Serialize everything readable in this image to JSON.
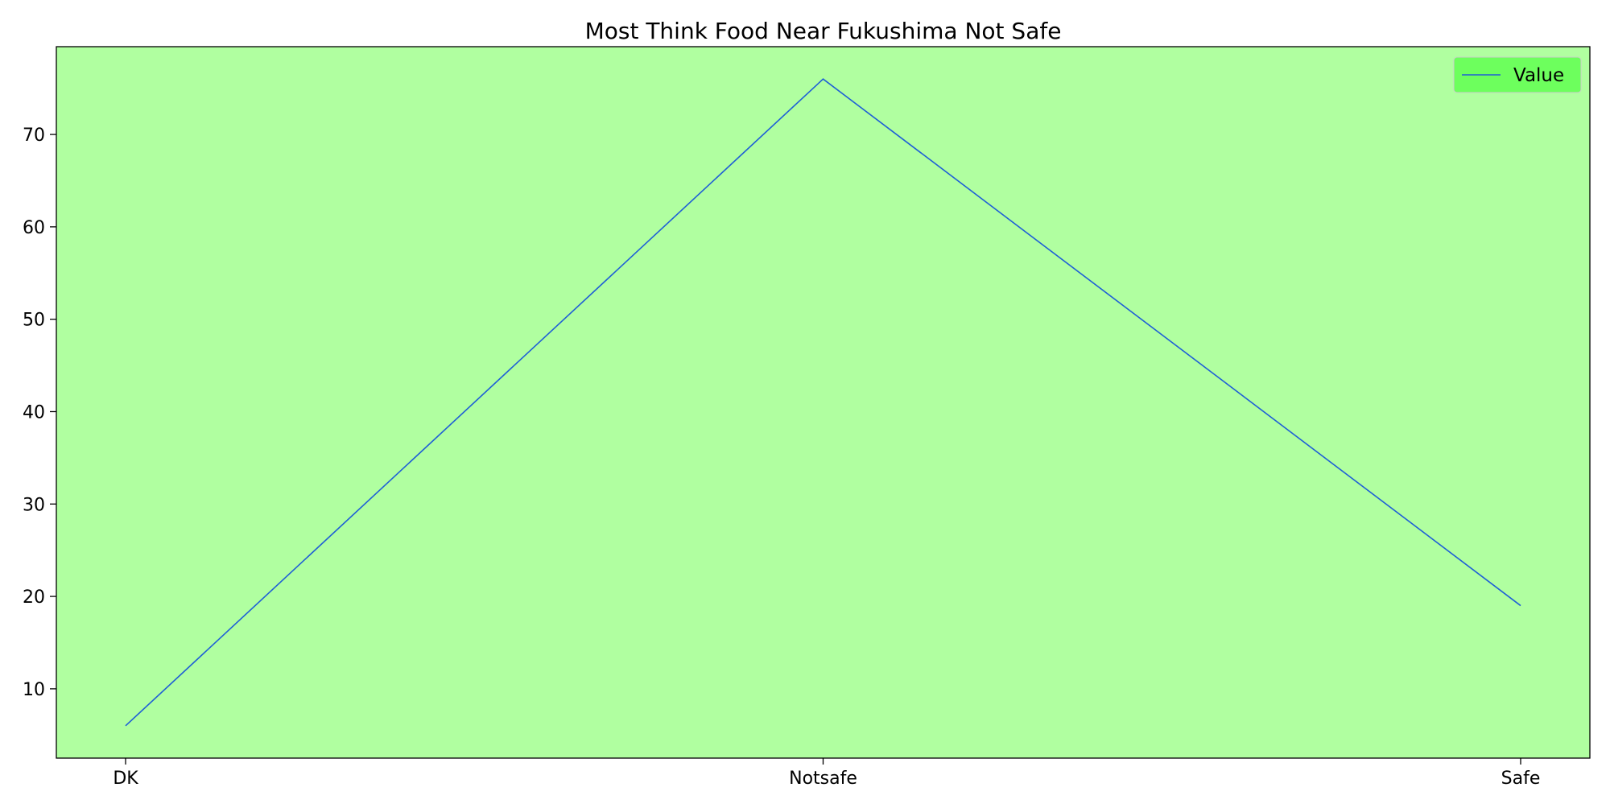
{
  "chart_data": {
    "type": "line",
    "title": "Most Think Food Near Fukushima Not Safe",
    "xlabel": "",
    "ylabel": "",
    "categories": [
      "DK",
      "Notsafe",
      "Safe"
    ],
    "series": [
      {
        "name": "Value",
        "values": [
          6,
          76,
          19
        ]
      }
    ],
    "ylim": [
      2.5,
      79.5
    ],
    "yticks": [
      10,
      20,
      30,
      40,
      50,
      60,
      70
    ],
    "grid": false,
    "legend": "top-right",
    "colors": {
      "plot_background": "#b0ffa0",
      "line": "#1f5fd6",
      "legend_background": "#66ff55",
      "axes": "#000000"
    }
  }
}
